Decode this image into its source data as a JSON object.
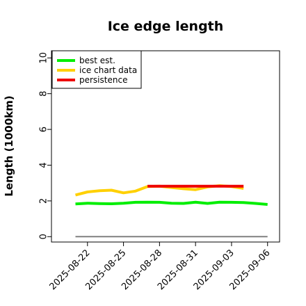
{
  "chart_data": {
    "type": "line",
    "title": "Ice edge length",
    "xlabel": "",
    "ylabel": "Length (1000km)",
    "ylim": [
      -0.3,
      10.4
    ],
    "yticks": [
      0,
      2,
      4,
      6,
      8,
      10
    ],
    "xlim": [
      "2025-08-19",
      "2025-09-07"
    ],
    "xticks": [
      "2025-08-22",
      "2025-08-25",
      "2025-08-28",
      "2025-08-31",
      "2025-09-03",
      "2025-09-06"
    ],
    "grid": false,
    "legend": "top-left",
    "series": [
      {
        "name": "best est.",
        "color": "#00ee00",
        "x": [
          "2025-08-21",
          "2025-08-22",
          "2025-08-23",
          "2025-08-24",
          "2025-08-25",
          "2025-08-26",
          "2025-08-27",
          "2025-08-28",
          "2025-08-29",
          "2025-08-30",
          "2025-08-31",
          "2025-09-01",
          "2025-09-02",
          "2025-09-03",
          "2025-09-04",
          "2025-09-05",
          "2025-09-06"
        ],
        "values": [
          1.83,
          1.87,
          1.85,
          1.84,
          1.87,
          1.92,
          1.93,
          1.92,
          1.87,
          1.86,
          1.93,
          1.86,
          1.93,
          1.92,
          1.91,
          1.86,
          1.8
        ]
      },
      {
        "name": "ice chart data",
        "color": "#ffd000",
        "x": [
          "2025-08-21",
          "2025-08-22",
          "2025-08-23",
          "2025-08-24",
          "2025-08-25",
          "2025-08-26",
          "2025-08-27",
          "2025-08-28",
          "2025-08-29",
          "2025-08-30",
          "2025-08-31",
          "2025-09-01",
          "2025-09-02",
          "2025-09-03",
          "2025-09-04"
        ],
        "values": [
          2.33,
          2.5,
          2.57,
          2.6,
          2.45,
          2.55,
          2.8,
          2.82,
          2.75,
          2.68,
          2.63,
          2.78,
          2.85,
          2.8,
          2.7
        ]
      },
      {
        "name": "persistence",
        "color": "#ee0000",
        "x": [
          "2025-08-27",
          "2025-09-04"
        ],
        "values": [
          2.82,
          2.82
        ]
      },
      {
        "name": "",
        "color": "#808080",
        "x": [
          "2025-08-21",
          "2025-09-06"
        ],
        "values": [
          0,
          0
        ]
      }
    ]
  }
}
